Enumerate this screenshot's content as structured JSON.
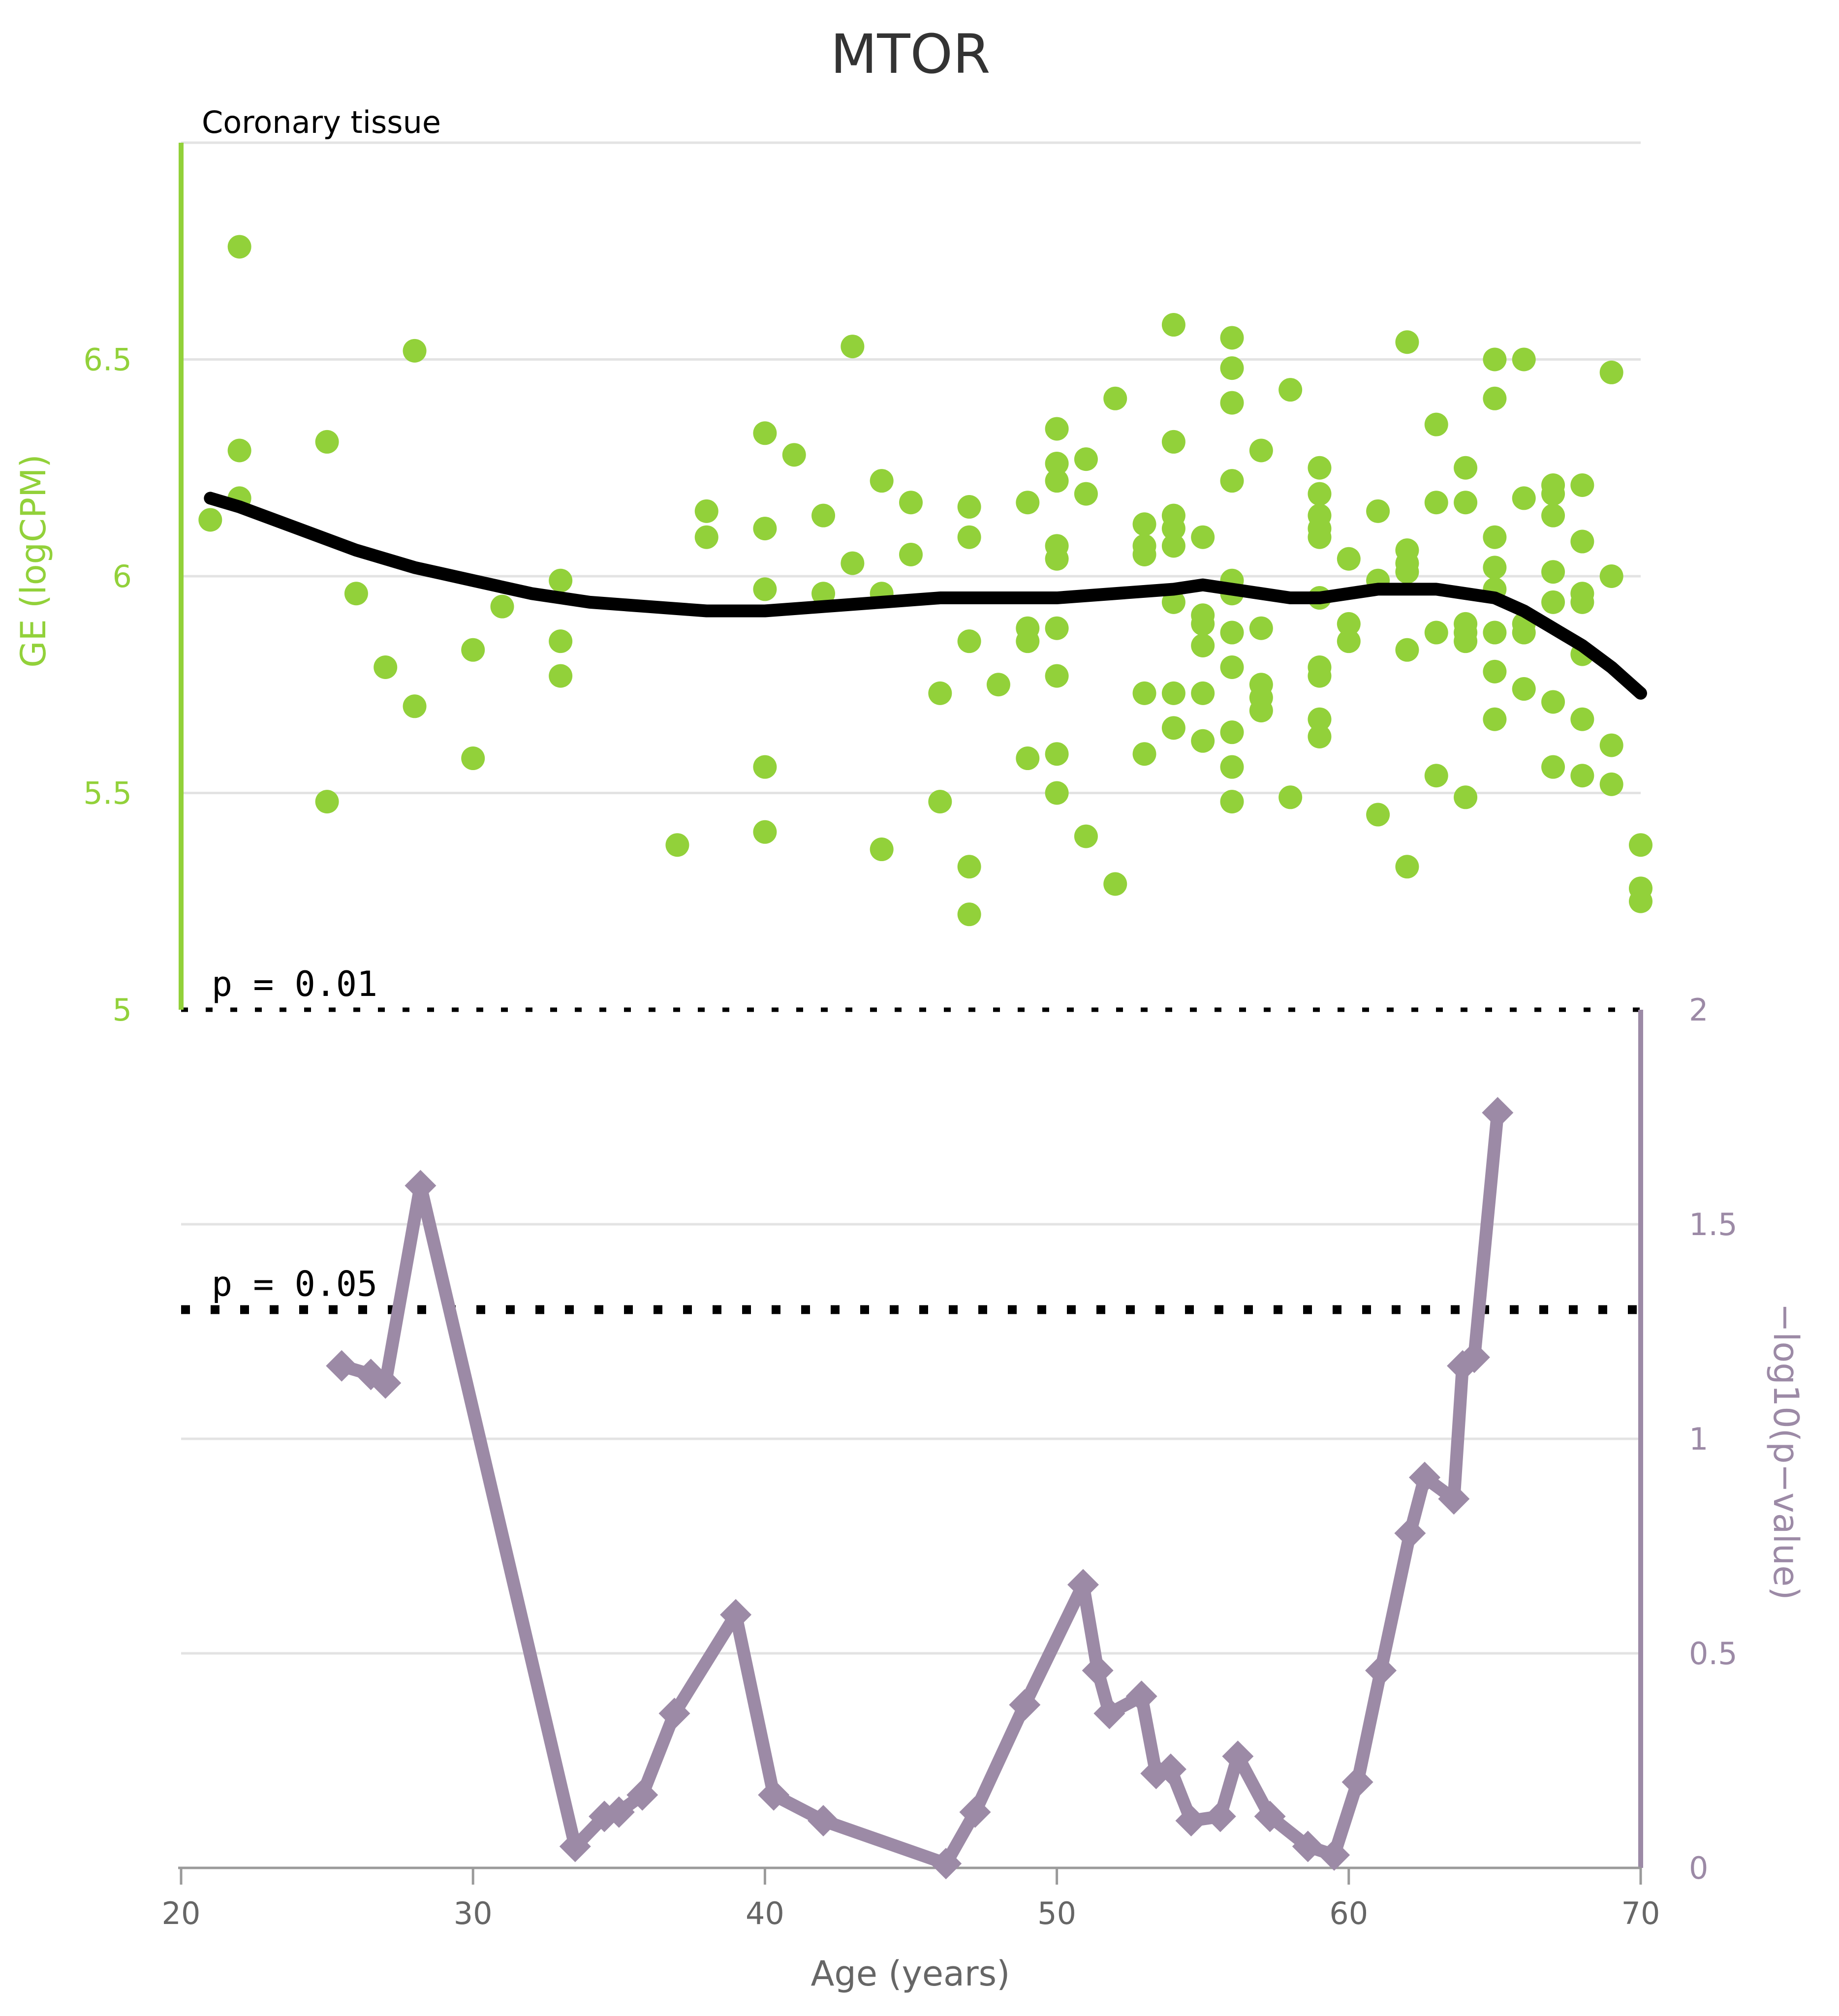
{
  "chart_data": {
    "type": "scatter+line",
    "title": "MTOR",
    "subtitle": "Coronary tissue",
    "colors": {
      "scatter": "#92d13a",
      "trend": "#000000",
      "pvalue": "#9c8aa6",
      "grid": "#e3e3e3",
      "tick": "#666666"
    },
    "x_axis": {
      "label": "Age (years)",
      "range": [
        20,
        70
      ],
      "ticks": [
        "20",
        "30",
        "40",
        "50",
        "60",
        "70"
      ]
    },
    "ge_axis": {
      "label": "GE (logCPM)",
      "range": [
        5,
        7
      ],
      "ticks": [
        "5",
        "5.5",
        "6",
        "6.5"
      ]
    },
    "p_axis": {
      "label": "−log10(p−value)",
      "range": [
        0,
        2
      ],
      "ticks": [
        "0",
        "0.5",
        "1",
        "1.5",
        "2"
      ]
    },
    "thresholds": [
      {
        "label": "p = 0.01",
        "value": 2
      },
      {
        "label": "p = 0.05",
        "value": 1.301
      }
    ],
    "scatter_points": [
      [
        21,
        6.13
      ],
      [
        22,
        6.76
      ],
      [
        22,
        6.29
      ],
      [
        22,
        6.18
      ],
      [
        25,
        6.31
      ],
      [
        25,
        5.48
      ],
      [
        26,
        5.96
      ],
      [
        27,
        5.79
      ],
      [
        28,
        6.52
      ],
      [
        28,
        5.7
      ],
      [
        30,
        5.83
      ],
      [
        30,
        5.58
      ],
      [
        31,
        5.93
      ],
      [
        33,
        5.99
      ],
      [
        33,
        5.85
      ],
      [
        33,
        5.77
      ],
      [
        37,
        5.38
      ],
      [
        38,
        6.15
      ],
      [
        38,
        6.09
      ],
      [
        40,
        6.33
      ],
      [
        40,
        6.11
      ],
      [
        40,
        5.97
      ],
      [
        40,
        5.56
      ],
      [
        40,
        5.41
      ],
      [
        41,
        6.28
      ],
      [
        42,
        6.14
      ],
      [
        42,
        5.96
      ],
      [
        43,
        6.53
      ],
      [
        43,
        6.03
      ],
      [
        44,
        6.22
      ],
      [
        44,
        5.96
      ],
      [
        44,
        5.37
      ],
      [
        45,
        6.17
      ],
      [
        45,
        6.05
      ],
      [
        46,
        5.73
      ],
      [
        46,
        5.48
      ],
      [
        47,
        6.16
      ],
      [
        47,
        6.09
      ],
      [
        47,
        5.85
      ],
      [
        47,
        5.33
      ],
      [
        47,
        5.22
      ],
      [
        48,
        5.75
      ],
      [
        49,
        6.17
      ],
      [
        49,
        5.88
      ],
      [
        49,
        5.85
      ],
      [
        49,
        5.58
      ],
      [
        50,
        6.34
      ],
      [
        50,
        6.26
      ],
      [
        50,
        6.22
      ],
      [
        50,
        6.07
      ],
      [
        50,
        6.04
      ],
      [
        50,
        5.88
      ],
      [
        50,
        5.77
      ],
      [
        50,
        5.59
      ],
      [
        50,
        5.5
      ],
      [
        51,
        6.27
      ],
      [
        51,
        6.19
      ],
      [
        51,
        5.4
      ],
      [
        52,
        6.41
      ],
      [
        52,
        5.29
      ],
      [
        53,
        6.12
      ],
      [
        53,
        6.07
      ],
      [
        53,
        6.05
      ],
      [
        53,
        5.73
      ],
      [
        53,
        5.59
      ],
      [
        54,
        6.58
      ],
      [
        54,
        6.31
      ],
      [
        54,
        6.14
      ],
      [
        54,
        6.11
      ],
      [
        54,
        6.07
      ],
      [
        54,
        5.94
      ],
      [
        54,
        5.73
      ],
      [
        54,
        5.65
      ],
      [
        55,
        6.09
      ],
      [
        55,
        5.91
      ],
      [
        55,
        5.89
      ],
      [
        55,
        5.84
      ],
      [
        55,
        5.73
      ],
      [
        55,
        5.62
      ],
      [
        56,
        6.55
      ],
      [
        56,
        6.48
      ],
      [
        56,
        6.4
      ],
      [
        56,
        6.22
      ],
      [
        56,
        5.99
      ],
      [
        56,
        5.96
      ],
      [
        56,
        5.87
      ],
      [
        56,
        5.79
      ],
      [
        56,
        5.64
      ],
      [
        56,
        5.56
      ],
      [
        56,
        5.48
      ],
      [
        57,
        6.29
      ],
      [
        57,
        5.88
      ],
      [
        57,
        5.75
      ],
      [
        57,
        5.72
      ],
      [
        57,
        5.69
      ],
      [
        58,
        6.43
      ],
      [
        58,
        5.49
      ],
      [
        59,
        6.25
      ],
      [
        59,
        6.19
      ],
      [
        59,
        6.14
      ],
      [
        59,
        6.11
      ],
      [
        59,
        6.09
      ],
      [
        59,
        5.95
      ],
      [
        59,
        5.79
      ],
      [
        59,
        5.77
      ],
      [
        59,
        5.67
      ],
      [
        59,
        5.63
      ],
      [
        60,
        6.04
      ],
      [
        60,
        5.89
      ],
      [
        60,
        5.85
      ],
      [
        61,
        6.15
      ],
      [
        61,
        5.99
      ],
      [
        61,
        5.45
      ],
      [
        62,
        6.54
      ],
      [
        62,
        6.06
      ],
      [
        62,
        6.03
      ],
      [
        62,
        6.01
      ],
      [
        62,
        5.83
      ],
      [
        62,
        5.33
      ],
      [
        63,
        6.35
      ],
      [
        63,
        6.17
      ],
      [
        63,
        5.87
      ],
      [
        63,
        5.54
      ],
      [
        64,
        6.25
      ],
      [
        64,
        6.17
      ],
      [
        64,
        5.89
      ],
      [
        64,
        5.87
      ],
      [
        64,
        5.85
      ],
      [
        64,
        5.49
      ],
      [
        65,
        6.5
      ],
      [
        65,
        6.41
      ],
      [
        65,
        6.09
      ],
      [
        65,
        6.02
      ],
      [
        65,
        5.97
      ],
      [
        65,
        5.87
      ],
      [
        65,
        5.78
      ],
      [
        65,
        5.67
      ],
      [
        66,
        6.5
      ],
      [
        66,
        6.18
      ],
      [
        66,
        5.89
      ],
      [
        66,
        5.87
      ],
      [
        66,
        5.74
      ],
      [
        67,
        6.21
      ],
      [
        67,
        6.19
      ],
      [
        67,
        6.14
      ],
      [
        67,
        6.01
      ],
      [
        67,
        5.94
      ],
      [
        67,
        5.71
      ],
      [
        67,
        5.56
      ],
      [
        68,
        6.21
      ],
      [
        68,
        6.08
      ],
      [
        68,
        5.96
      ],
      [
        68,
        5.94
      ],
      [
        68,
        5.82
      ],
      [
        68,
        5.67
      ],
      [
        68,
        5.54
      ],
      [
        69,
        6.47
      ],
      [
        69,
        6.0
      ],
      [
        69,
        5.61
      ],
      [
        69,
        5.52
      ],
      [
        70,
        5.38
      ],
      [
        70,
        5.28
      ],
      [
        70,
        5.25
      ]
    ],
    "trend_line": [
      [
        21,
        6.18
      ],
      [
        22,
        6.16
      ],
      [
        24,
        6.11
      ],
      [
        26,
        6.06
      ],
      [
        28,
        6.02
      ],
      [
        30,
        5.99
      ],
      [
        32,
        5.96
      ],
      [
        34,
        5.94
      ],
      [
        36,
        5.93
      ],
      [
        38,
        5.92
      ],
      [
        40,
        5.92
      ],
      [
        42,
        5.93
      ],
      [
        44,
        5.94
      ],
      [
        46,
        5.95
      ],
      [
        48,
        5.95
      ],
      [
        50,
        5.95
      ],
      [
        52,
        5.96
      ],
      [
        54,
        5.97
      ],
      [
        55,
        5.98
      ],
      [
        56,
        5.97
      ],
      [
        57,
        5.96
      ],
      [
        58,
        5.95
      ],
      [
        59,
        5.95
      ],
      [
        60,
        5.96
      ],
      [
        61,
        5.97
      ],
      [
        62,
        5.97
      ],
      [
        63,
        5.97
      ],
      [
        64,
        5.96
      ],
      [
        65,
        5.95
      ],
      [
        66,
        5.92
      ],
      [
        67,
        5.88
      ],
      [
        68,
        5.84
      ],
      [
        69,
        5.79
      ],
      [
        70,
        5.73
      ]
    ],
    "pvalue_line": [
      [
        25.5,
        1.17
      ],
      [
        26.5,
        1.15
      ],
      [
        27,
        1.13
      ],
      [
        28.2,
        1.59
      ],
      [
        33.5,
        0.05
      ],
      [
        34.5,
        0.12
      ],
      [
        35,
        0.13
      ],
      [
        35.8,
        0.17
      ],
      [
        36.9,
        0.36
      ],
      [
        39,
        0.59
      ],
      [
        40.3,
        0.17
      ],
      [
        42,
        0.11
      ],
      [
        46.2,
        0.01
      ],
      [
        47.2,
        0.13
      ],
      [
        48.9,
        0.38
      ],
      [
        50.9,
        0.66
      ],
      [
        51.4,
        0.46
      ],
      [
        51.8,
        0.36
      ],
      [
        52.9,
        0.4
      ],
      [
        53.4,
        0.22
      ],
      [
        53.9,
        0.23
      ],
      [
        54.6,
        0.11
      ],
      [
        55.6,
        0.12
      ],
      [
        56.2,
        0.26
      ],
      [
        57.3,
        0.12
      ],
      [
        58.6,
        0.05
      ],
      [
        59.5,
        0.03
      ],
      [
        60.3,
        0.2
      ],
      [
        61.1,
        0.46
      ],
      [
        62.1,
        0.78
      ],
      [
        62.6,
        0.91
      ],
      [
        63.6,
        0.86
      ],
      [
        63.9,
        1.17
      ],
      [
        64.3,
        1.19
      ],
      [
        65.1,
        1.76
      ]
    ]
  }
}
